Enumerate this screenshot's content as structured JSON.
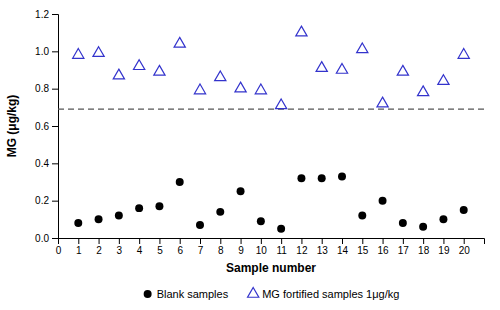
{
  "chart_data": {
    "type": "scatter",
    "xlabel": "Sample number",
    "ylabel": "MG (μg/kg)",
    "series": [
      {
        "name": "Blank samples",
        "color": "black",
        "marker": "circle",
        "x": [
          1,
          2,
          3,
          4,
          5,
          6,
          7,
          8,
          9,
          10,
          11,
          12,
          13,
          14,
          15,
          16,
          17,
          18,
          19,
          20
        ],
        "values": [
          0.08,
          0.1,
          0.12,
          0.16,
          0.17,
          0.3,
          0.07,
          0.14,
          0.25,
          0.09,
          0.05,
          0.32,
          0.32,
          0.33,
          0.12,
          0.2,
          0.08,
          0.06,
          0.1,
          0.15
        ]
      },
      {
        "name": "MG fortified samples 1μg/kg",
        "color": "#3333cc",
        "marker": "triangle",
        "x": [
          1,
          2,
          3,
          4,
          5,
          6,
          7,
          8,
          9,
          10,
          11,
          12,
          13,
          14,
          15,
          16,
          17,
          18,
          19,
          20
        ],
        "values": [
          0.98,
          0.99,
          0.87,
          0.92,
          0.89,
          1.04,
          0.79,
          0.86,
          0.8,
          0.79,
          0.71,
          1.1,
          0.91,
          0.9,
          1.01,
          0.72,
          0.89,
          0.78,
          0.84,
          0.98
        ]
      }
    ],
    "reference_lines": [
      {
        "y": 0.69,
        "color": "#555555",
        "line_style": "dashed"
      }
    ],
    "xlim": [
      0,
      21
    ],
    "ylim": [
      0,
      1.2
    ],
    "xticks": [
      0,
      1,
      2,
      3,
      4,
      5,
      6,
      7,
      8,
      9,
      10,
      11,
      12,
      13,
      14,
      15,
      16,
      17,
      18,
      19,
      20
    ],
    "yticks": [
      {
        "value": 0,
        "label": "0.0"
      },
      0.2,
      0.4,
      0.6,
      0.8,
      {
        "value": 1.0,
        "label": "1.0"
      },
      1.2
    ]
  }
}
